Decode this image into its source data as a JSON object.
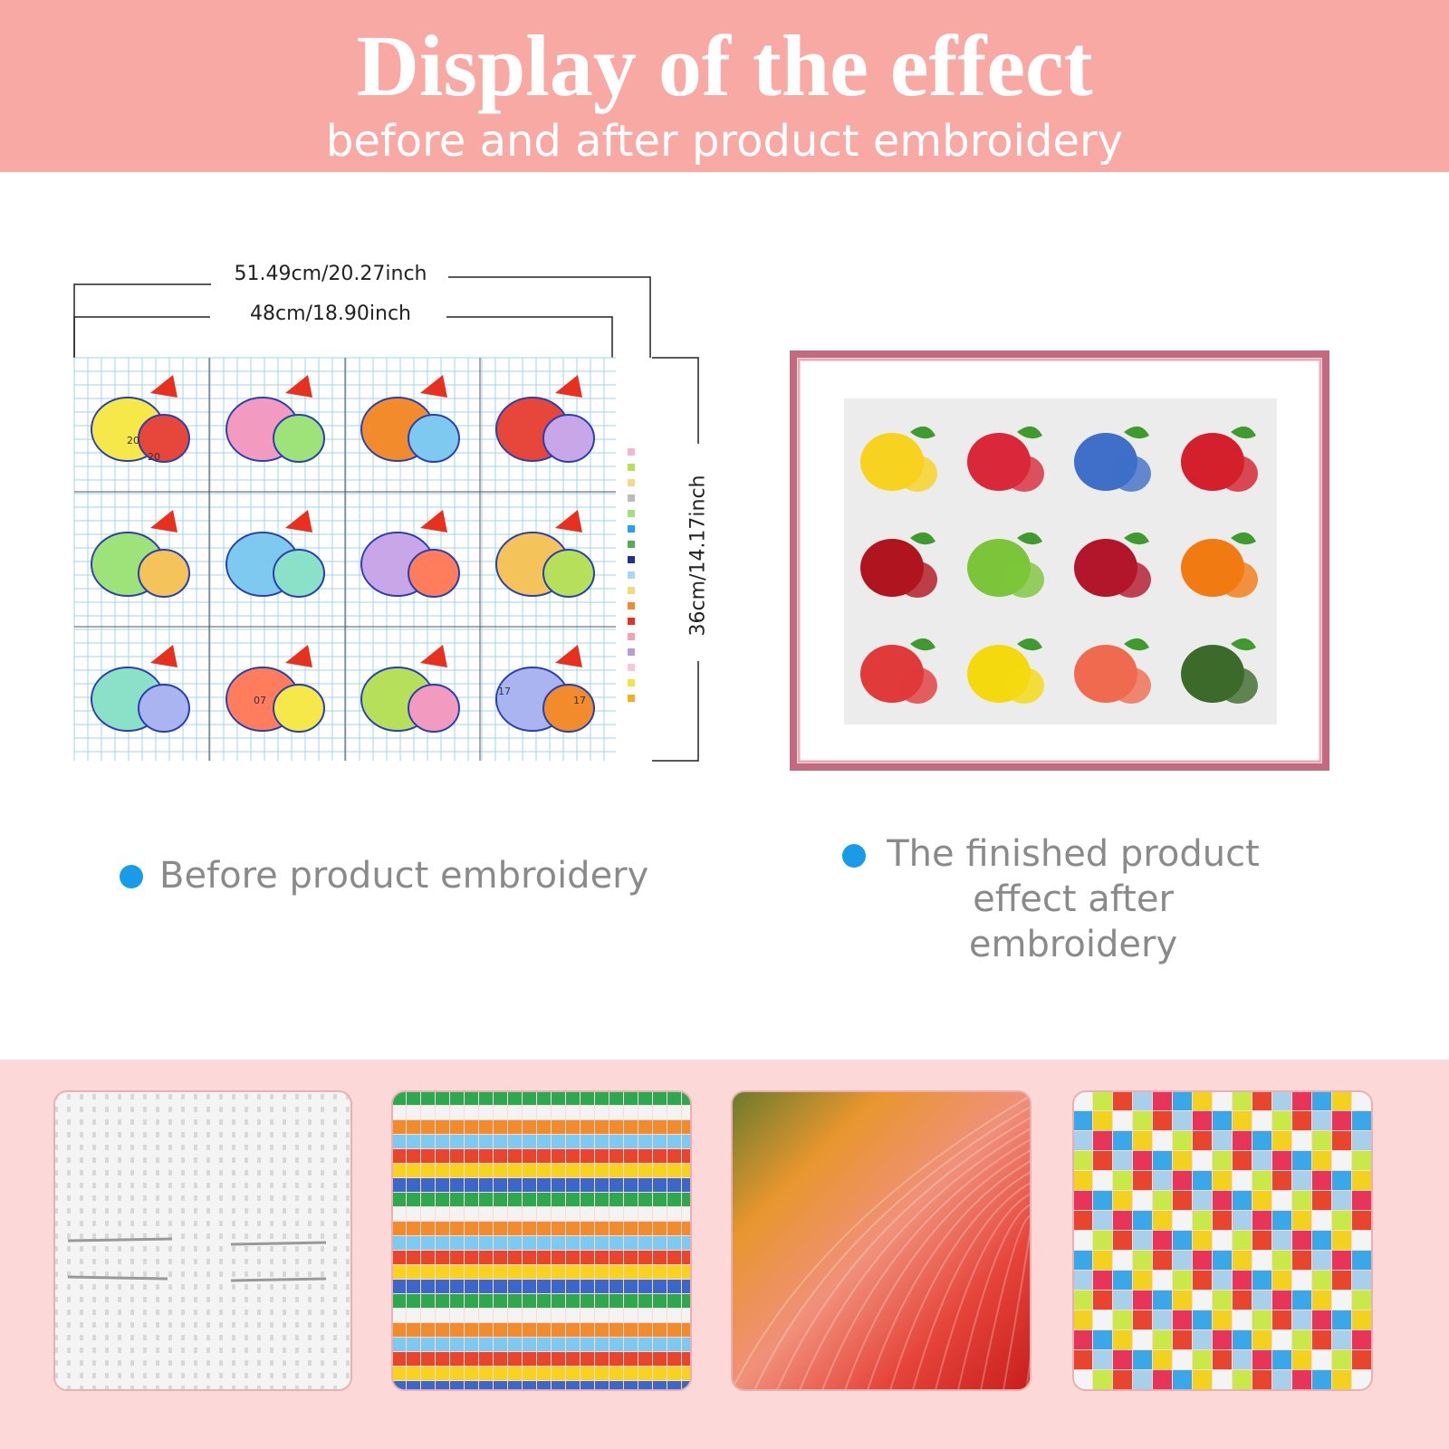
{
  "header": {
    "title": "Display of the effect",
    "subtitle": "before and after product embroidery"
  },
  "dimensions": {
    "total_width": "51.49cm/20.27inch",
    "pattern_width": "48cm/18.90inch",
    "height": "36cm/14.17inch"
  },
  "pattern_labels": [
    "20",
    "20",
    "07",
    "17",
    "17"
  ],
  "captions": {
    "before": "Before product embroidery",
    "after": "The finished product effect after embroidery"
  }
}
